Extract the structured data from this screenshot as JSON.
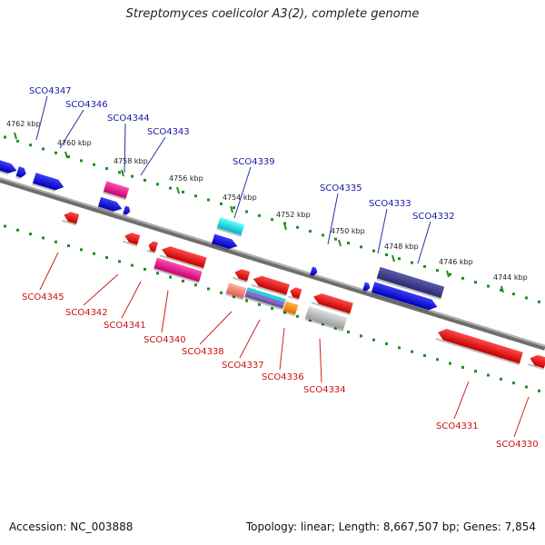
{
  "title": "Streptomyces coelicolor A3(2), complete genome",
  "footer": {
    "accession": "Accession: NC_003888",
    "stats": "Topology: linear; Length: 8,667,507 bp; Genes: 7,854"
  },
  "scale_ticks": [
    "4762 kbp",
    "4760 kbp",
    "4758 kbp",
    "4756 kbp",
    "4754 kbp",
    "4752 kbp",
    "4750 kbp",
    "4748 kbp",
    "4746 kbp",
    "4744 kbp"
  ],
  "genes_forward": [
    "SCO4347",
    "SCO4346",
    "SCO4344",
    "SCO4343",
    "SCO4339",
    "SCO4335",
    "SCO4333",
    "SCO4332"
  ],
  "genes_reverse": [
    "SCO4345",
    "SCO4342",
    "SCO4341",
    "SCO4340",
    "SCO4338",
    "SCO4337",
    "SCO4336",
    "SCO4334",
    "SCO4331",
    "SCO4330"
  ],
  "colors": {
    "forward_label": "#1a1aa8",
    "reverse_label": "#cc1111",
    "tick_dots": "#1f8f1f",
    "backbone": "#888888"
  }
}
